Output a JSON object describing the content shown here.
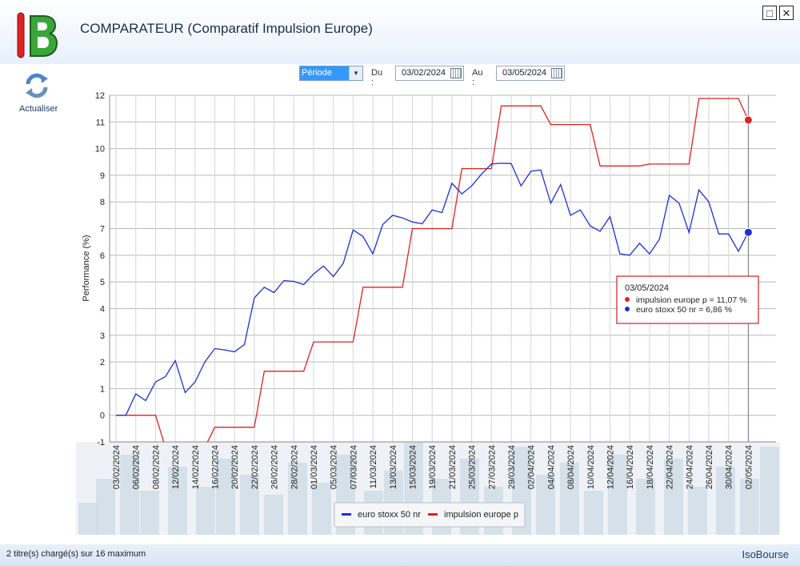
{
  "window": {
    "title": "COMPARATEUR (Comparatif Impulsion Europe)",
    "maximize_glyph": "□",
    "close_glyph": "✕"
  },
  "toolbar": {
    "refresh_label": "Actualiser",
    "refresh_icon": "refresh-icon"
  },
  "filters": {
    "period_value": "Période",
    "from_label": "Du :",
    "from_value": "03/02/2024",
    "to_label": "Au :",
    "to_value": "03/05/2024"
  },
  "chart_data": {
    "type": "line",
    "ylabel": "Performance (%)",
    "ylim": [
      -1,
      12
    ],
    "yticks": [
      -1,
      0,
      1,
      2,
      3,
      4,
      5,
      6,
      7,
      8,
      9,
      10,
      11,
      12
    ],
    "x_tick_labels": [
      "03/02/2024",
      "06/02/2024",
      "08/02/2024",
      "12/02/2024",
      "14/02/2024",
      "16/02/2024",
      "20/02/2024",
      "22/02/2024",
      "26/02/2024",
      "28/02/2024",
      "01/03/2024",
      "05/03/2024",
      "07/03/2024",
      "11/03/2024",
      "13/03/2024",
      "15/03/2024",
      "19/03/2024",
      "21/03/2024",
      "25/03/2024",
      "27/03/2024",
      "29/03/2024",
      "02/04/2024",
      "04/04/2024",
      "08/04/2024",
      "10/04/2024",
      "12/04/2024",
      "16/04/2024",
      "18/04/2024",
      "22/04/2024",
      "24/04/2024",
      "26/04/2024",
      "30/04/2024",
      "02/05/2024"
    ],
    "n_points": 65,
    "grid": true,
    "legend_position": "bottom-center",
    "series": [
      {
        "name": "euro stoxx 50 nr",
        "color": "#1f2fd6",
        "values": [
          0,
          0,
          0.8,
          0.55,
          1.25,
          1.45,
          2.05,
          0.85,
          1.25,
          2.0,
          2.5,
          2.45,
          2.38,
          2.65,
          4.4,
          4.8,
          4.6,
          5.05,
          5.02,
          4.9,
          5.3,
          5.6,
          5.2,
          5.7,
          6.95,
          6.7,
          6.05,
          7.15,
          7.5,
          7.4,
          7.25,
          7.18,
          7.7,
          7.6,
          8.7,
          8.3,
          8.6,
          9.05,
          9.42,
          9.45,
          9.44,
          8.6,
          9.15,
          9.2,
          7.95,
          8.65,
          7.5,
          7.7,
          7.1,
          6.9,
          7.45,
          6.05,
          6.0,
          6.45,
          6.05,
          6.6,
          8.25,
          7.95,
          6.85,
          8.45,
          8.0,
          6.8,
          6.8,
          6.15,
          6.86
        ]
      },
      {
        "name": "impulsion europe p",
        "color": "#e02222",
        "values": [
          0,
          0,
          0,
          0,
          0,
          -1.2,
          -1.2,
          -1.2,
          -1.2,
          -1.2,
          -0.45,
          -0.45,
          -0.45,
          -0.45,
          -0.45,
          1.65,
          1.65,
          1.65,
          1.65,
          1.65,
          2.75,
          2.75,
          2.75,
          2.75,
          2.75,
          4.8,
          4.8,
          4.8,
          4.8,
          4.8,
          7.0,
          7.0,
          7.0,
          7.0,
          7.0,
          9.25,
          9.25,
          9.25,
          9.25,
          11.6,
          11.6,
          11.6,
          11.6,
          11.6,
          10.9,
          10.9,
          10.9,
          10.9,
          10.9,
          9.35,
          9.35,
          9.35,
          9.35,
          9.35,
          9.42,
          9.42,
          9.42,
          9.42,
          9.42,
          11.88,
          11.88,
          11.88,
          11.88,
          11.88,
          11.07
        ]
      }
    ],
    "tooltip": {
      "date": "03/05/2024",
      "lines": [
        {
          "text": "impulsion europe p = 11,07 %",
          "color": "#e02222"
        },
        {
          "text": "euro stoxx 50 nr = 6,86 %",
          "color": "#1f2fd6"
        }
      ]
    }
  },
  "status": {
    "left": "2 titre(s) chargé(s) sur 16 maximum",
    "right": "IsoBourse"
  }
}
